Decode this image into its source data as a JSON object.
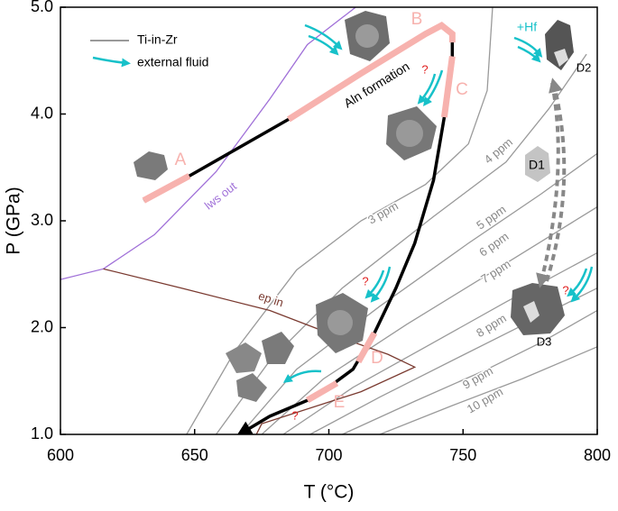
{
  "chart_data": {
    "type": "line",
    "xlabel": "T (°C)",
    "ylabel": "P (GPa)",
    "xlim": [
      600,
      800
    ],
    "ylim": [
      1.0,
      5.0
    ],
    "xticks": [
      600,
      650,
      700,
      750,
      800
    ],
    "yticks": [
      {
        "value": 1.0,
        "label": "1.0"
      },
      {
        "value": 2.0,
        "label": "2.0"
      },
      {
        "value": 3.0,
        "label": "3.0"
      },
      {
        "value": 4.0,
        "label": "4.0"
      },
      {
        "value": 5.0,
        "label": "5.0"
      }
    ],
    "legend": [
      {
        "label": "Ti-in-Zr",
        "color": "#9a9a9a"
      },
      {
        "label": "external fluid",
        "color": "#17c1c9"
      }
    ],
    "series": [
      {
        "name": "3 ppm",
        "color": "#9a9a9a",
        "x": [
          647,
          665,
          688,
          712,
          736,
          752,
          759,
          761
        ],
        "y": [
          1.0,
          1.78,
          2.54,
          3.0,
          3.34,
          3.72,
          4.22,
          5.0
        ]
      },
      {
        "name": "4 ppm",
        "color": "#9a9a9a",
        "x": [
          658,
          678,
          705,
          739,
          766,
          782,
          796
        ],
        "y": [
          1.0,
          1.69,
          2.37,
          3.04,
          3.55,
          4.05,
          4.56
        ]
      },
      {
        "name": "5 ppm",
        "color": "#9a9a9a",
        "x": [
          667,
          688,
          719,
          752,
          779,
          800
        ],
        "y": [
          1.0,
          1.61,
          2.2,
          2.79,
          3.25,
          3.63
        ]
      },
      {
        "name": "6 ppm",
        "color": "#9a9a9a",
        "x": [
          675,
          698,
          729,
          762,
          800
        ],
        "y": [
          1.0,
          1.52,
          2.03,
          2.54,
          3.13
        ]
      },
      {
        "name": "7 ppm",
        "color": "#9a9a9a",
        "x": [
          683,
          709,
          739,
          766,
          800
        ],
        "y": [
          1.0,
          1.44,
          1.86,
          2.24,
          2.7
        ]
      },
      {
        "name": "8 ppm",
        "color": "#9a9a9a",
        "x": [
          693,
          719,
          749,
          776,
          800
        ],
        "y": [
          1.0,
          1.35,
          1.73,
          2.07,
          2.37
        ]
      },
      {
        "name": "9 ppm",
        "color": "#9a9a9a",
        "x": [
          705,
          732,
          759,
          779,
          800
        ],
        "y": [
          1.0,
          1.31,
          1.61,
          1.86,
          2.16
        ]
      },
      {
        "name": "10 ppm",
        "color": "#9a9a9a",
        "x": [
          719,
          746,
          772,
          800
        ],
        "y": [
          1.0,
          1.27,
          1.52,
          1.82
        ]
      },
      {
        "name": "lws out",
        "color": "#a070d8",
        "x": [
          600,
          616,
          635,
          658,
          678,
          692,
          710
        ],
        "y": [
          2.45,
          2.55,
          2.87,
          3.46,
          4.14,
          4.65,
          5.0
        ]
      },
      {
        "name": "ep in",
        "color": "#7a3a30",
        "x": [
          616,
          645,
          678,
          705,
          722,
          732,
          712,
          675,
          673
        ],
        "y": [
          2.55,
          2.37,
          2.16,
          1.9,
          1.75,
          1.63,
          1.4,
          1.1,
          1.0
        ]
      },
      {
        "color": "#000000",
        "x": [
          631,
          648,
          685,
          712,
          736,
          742,
          746,
          746,
          743,
          739,
          732,
          725,
          717,
          709,
          695,
          678,
          668
        ],
        "y": [
          3.19,
          3.42,
          3.95,
          4.38,
          4.75,
          4.83,
          4.75,
          4.54,
          3.97,
          3.38,
          2.79,
          2.37,
          1.95,
          1.61,
          1.35,
          1.17,
          1.02
        ]
      },
      {
        "name": "A",
        "color": "#f7b2ae",
        "x": [
          631,
          648
        ],
        "y": [
          3.19,
          3.42
        ]
      },
      {
        "name": "B",
        "color": "#f7b2ae",
        "x": [
          685,
          712,
          736,
          742,
          746,
          746
        ],
        "y": [
          3.95,
          4.38,
          4.75,
          4.83,
          4.75,
          4.67
        ]
      },
      {
        "name": "C",
        "color": "#f7b2ae",
        "x": [
          746,
          743
        ],
        "y": [
          4.54,
          3.97
        ]
      },
      {
        "name": "D",
        "color": "#f7b2ae",
        "x": [
          717,
          711
        ],
        "y": [
          1.95,
          1.68
        ]
      },
      {
        "name": "E",
        "color": "#f7b2ae",
        "x": [
          703,
          692
        ],
        "y": [
          1.48,
          1.32
        ]
      }
    ],
    "annotations": [
      "Aln formation",
      "+Hf",
      "D1",
      "D2",
      "D3",
      "?",
      "?",
      "?",
      "?"
    ]
  }
}
